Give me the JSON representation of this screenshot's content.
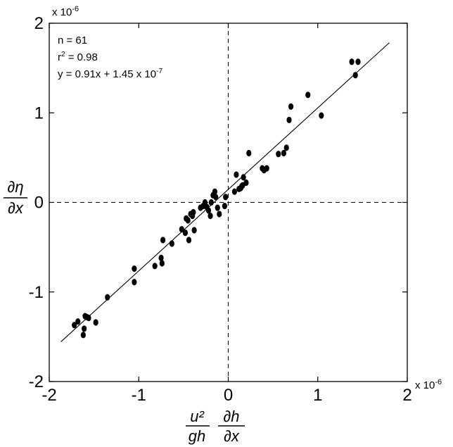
{
  "chart_data": {
    "type": "scatter",
    "title": "",
    "xlabel": {
      "numerator": "u²",
      "denominator": "gh",
      "partial_num": "∂h",
      "partial_den": "∂x"
    },
    "ylabel": {
      "numerator": "∂η",
      "denominator": "∂x"
    },
    "xlim": [
      -2,
      2
    ],
    "ylim": [
      -2,
      2
    ],
    "x_multiplier": {
      "base": "x 10",
      "exp": "-6"
    },
    "y_multiplier": {
      "base": "x 10",
      "exp": "-6"
    },
    "xticks": [
      -2,
      -1,
      0,
      1,
      2
    ],
    "xtick_labels": [
      "-2",
      "-1",
      "0",
      "1",
      "2"
    ],
    "yticks": [
      -2,
      -1,
      0,
      1,
      2
    ],
    "ytick_labels": [
      "-2",
      "-1",
      "0",
      "1",
      "2"
    ],
    "grid": false,
    "reference_lines": {
      "x": 0,
      "y": 0,
      "style": "dashed"
    },
    "annotations": {
      "n": "n = 61",
      "r2_prefix": "r",
      "r2_sup": "2",
      "r2_suffix": " = 0.98",
      "eq_prefix": "y = 0.91x + 1.45 x 10",
      "eq_sup": "-7"
    },
    "fit_line": {
      "slope": 0.91,
      "intercept": 0.145,
      "x_range": [
        -1.87,
        1.8
      ]
    },
    "series": [
      {
        "color": "#000000",
        "x": [
          -1.72,
          -1.68,
          -1.62,
          -1.61,
          -1.6,
          -1.58,
          -1.56,
          -1.48,
          -1.35,
          -1.05,
          -1.05,
          -0.82,
          -0.75,
          -0.74,
          -0.73,
          -0.63,
          -0.52,
          -0.48,
          -0.47,
          -0.45,
          -0.44,
          -0.42,
          -0.4,
          -0.39,
          -0.38,
          -0.31,
          -0.28,
          -0.26,
          -0.22,
          -0.2,
          -0.19,
          -0.17,
          -0.15,
          -0.14,
          -0.12,
          -0.1,
          -0.04,
          -0.03,
          0.07,
          0.09,
          0.12,
          0.14,
          0.15,
          0.16,
          0.17,
          0.2,
          0.23,
          0.38,
          0.4,
          0.43,
          0.56,
          0.62,
          0.65,
          0.68,
          0.7,
          0.89,
          1.04,
          1.38,
          1.42,
          1.45,
          -0.24
        ],
        "y": [
          -1.37,
          -1.33,
          -1.48,
          -1.41,
          -1.27,
          -1.28,
          -1.29,
          -1.34,
          -1.06,
          -0.74,
          -0.89,
          -0.71,
          -0.62,
          -0.68,
          -0.42,
          -0.46,
          -0.3,
          -0.34,
          -0.18,
          -0.2,
          -0.42,
          -0.13,
          -0.15,
          -0.11,
          -0.31,
          -0.06,
          -0.04,
          0.0,
          -0.09,
          -0.15,
          0.0,
          0.08,
          0.12,
          0.06,
          -0.06,
          -0.13,
          -0.04,
          0.06,
          0.12,
          0.31,
          0.15,
          0.16,
          0.18,
          0.19,
          0.28,
          0.22,
          0.55,
          0.38,
          0.36,
          0.38,
          0.54,
          0.55,
          0.61,
          0.92,
          1.07,
          1.2,
          0.97,
          1.57,
          1.42,
          1.57,
          -0.05
        ]
      }
    ]
  }
}
